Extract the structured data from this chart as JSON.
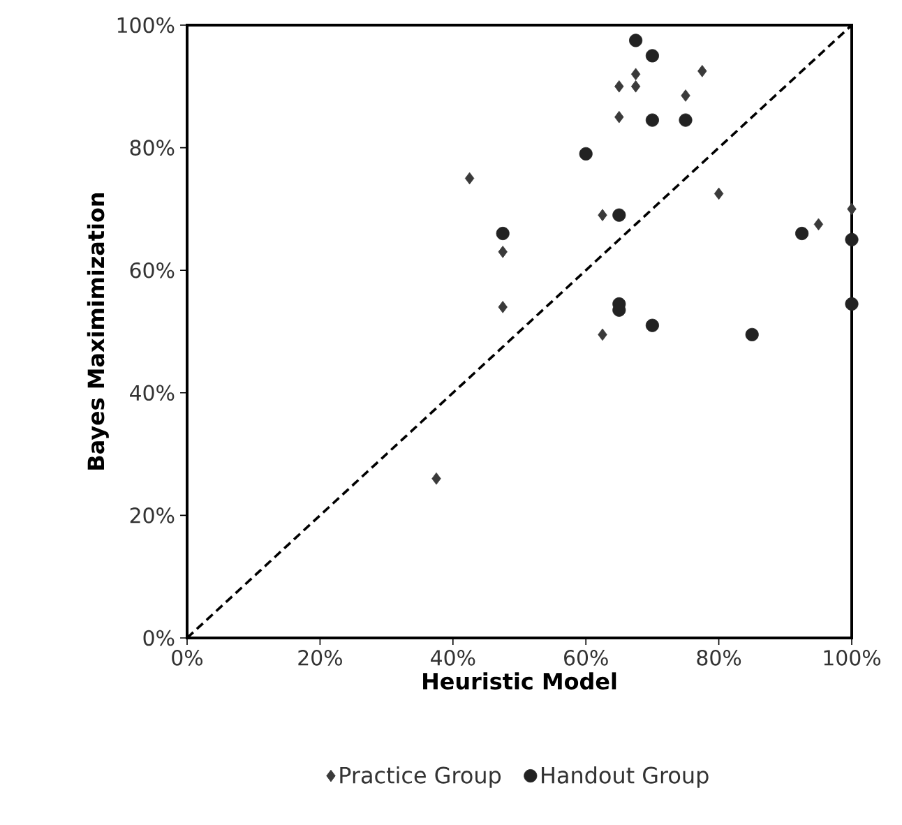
{
  "chart_data": {
    "type": "scatter",
    "xlabel": "Heuristic Model",
    "ylabel": "Bayes Maximimization",
    "xlim": [
      0,
      100
    ],
    "ylim": [
      0,
      100
    ],
    "xticks": [
      {
        "value": 0,
        "label": "0%"
      },
      {
        "value": 20,
        "label": "20%"
      },
      {
        "value": 40,
        "label": "40%"
      },
      {
        "value": 60,
        "label": "60%"
      },
      {
        "value": 80,
        "label": "80%"
      },
      {
        "value": 100,
        "label": "100%"
      }
    ],
    "yticks": [
      {
        "value": 0,
        "label": "0%"
      },
      {
        "value": 20,
        "label": "20%"
      },
      {
        "value": 40,
        "label": "40%"
      },
      {
        "value": 60,
        "label": "60%"
      },
      {
        "value": 80,
        "label": "80%"
      },
      {
        "value": 100,
        "label": "100%"
      }
    ],
    "grid": false,
    "legend": "bottom",
    "series": [
      {
        "name": "Practice Group",
        "color": "#3a3a3a",
        "marker": "diamond",
        "x": [
          37.5,
          42.5,
          47.5,
          47.5,
          62.5,
          62.5,
          65,
          65,
          67.5,
          67.5,
          75,
          77.5,
          80,
          95,
          100
        ],
        "values": [
          26,
          75,
          63,
          54,
          49.5,
          69,
          90,
          85,
          92,
          90,
          88.5,
          92.5,
          72.5,
          67.5,
          70
        ]
      },
      {
        "name": "Handout Group",
        "color": "#222222",
        "marker": "circle",
        "x": [
          60,
          47.5,
          65,
          65,
          65,
          67.5,
          70,
          70,
          75,
          70,
          85,
          92.5,
          100,
          100
        ],
        "values": [
          79,
          66,
          69,
          54.5,
          53.5,
          97.5,
          95,
          84.5,
          84.5,
          51,
          49.5,
          66,
          65,
          54.5
        ]
      },
      {
        "type": "line",
        "color": "#000000",
        "marker": "none",
        "line_style": "dashed",
        "x": [
          0,
          100
        ],
        "values": [
          0,
          100
        ]
      }
    ]
  }
}
